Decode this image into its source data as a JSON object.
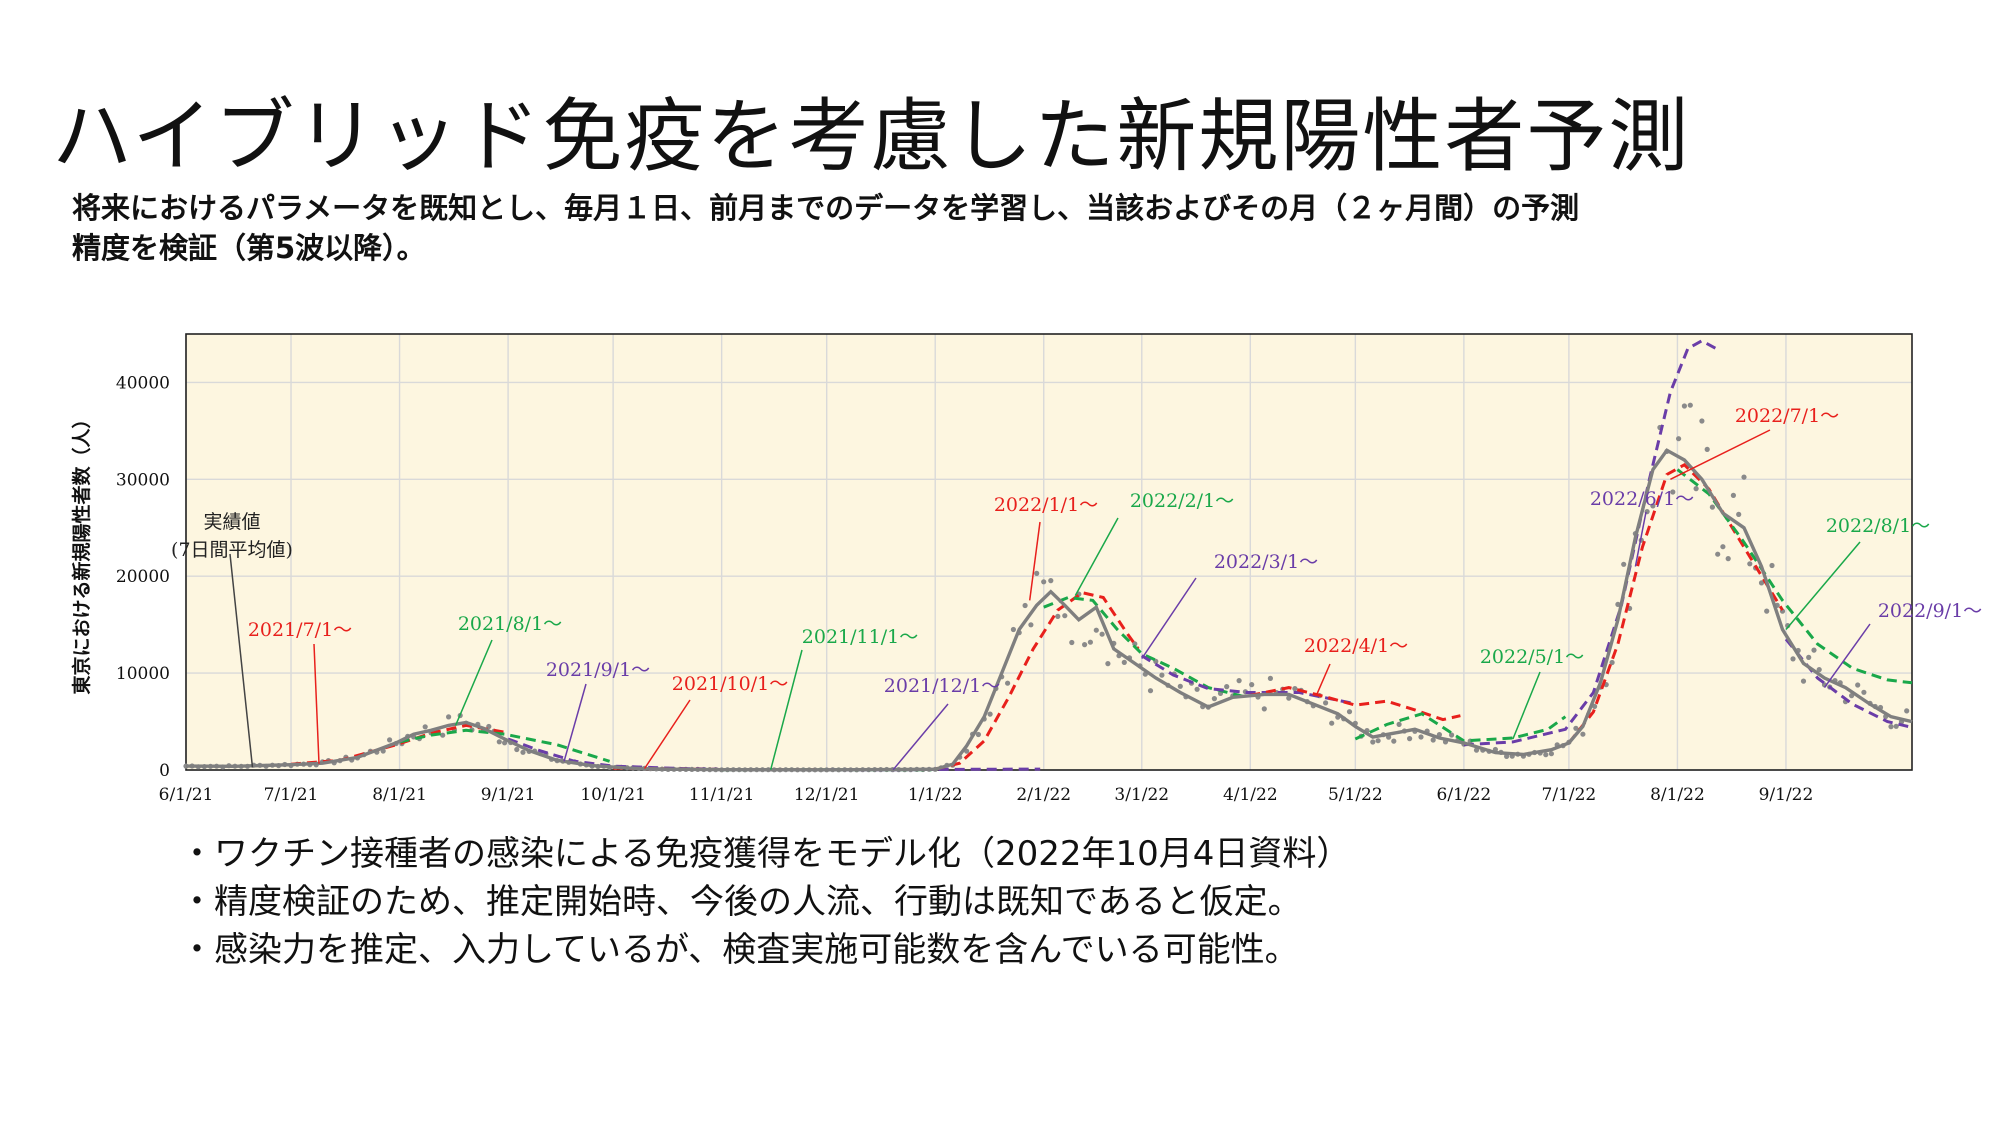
{
  "title": "ハイブリッド免疫を考慮した新規陽性者予測",
  "subtitle": {
    "line1": "将来におけるパラメータを既知とし、毎月１日、前月までのデータを学習し、当該およびその月（２ヶ月間）の予測",
    "line2": "精度を検証（第5波以降）。"
  },
  "notes": [
    "・ワクチン接種者の感染による免疫獲得をモデル化（2022年10月4日資料）",
    "・精度検証のため、推定開始時、今後の人流、行動は既知であると仮定。",
    "・感染力を推定、入力しているが、検査実施可能数を含んでいる可能性。"
  ],
  "colors": {
    "background": "#fdf6e0",
    "grid": "#d9d9d9",
    "actual": "#7f7f7f",
    "red": "#e8201c",
    "green": "#1aa84a",
    "purple": "#6a3da8"
  },
  "chart_data": {
    "type": "line",
    "ylabel": "東京における新規陽性者数（人）",
    "ylim": [
      0,
      45000
    ],
    "yticks": [
      0,
      10000,
      20000,
      30000,
      40000
    ],
    "ytick_labels": [
      "0",
      "10000",
      "20000",
      "30000",
      "40000"
    ],
    "xlim": [
      "2021-06-01",
      "2022-10-07"
    ],
    "xticks": [
      "2021-06-01",
      "2021-07-01",
      "2021-08-01",
      "2021-09-01",
      "2021-10-01",
      "2021-11-01",
      "2021-12-01",
      "2022-01-01",
      "2022-02-01",
      "2022-03-01",
      "2022-04-01",
      "2022-05-01",
      "2022-06-01",
      "2022-07-01",
      "2022-08-01",
      "2022-09-01"
    ],
    "xtick_labels": [
      "6/1/21",
      "7/1/21",
      "8/1/21",
      "9/1/21",
      "10/1/21",
      "11/1/21",
      "12/1/21",
      "1/1/22",
      "2/1/22",
      "3/1/22",
      "4/1/22",
      "5/1/22",
      "6/1/22",
      "7/1/22",
      "8/1/22",
      "9/1/22"
    ],
    "grid": true,
    "actual_line": {
      "label": "実績値",
      "label2": "(7日間平均値)",
      "color": "#7f7f7f",
      "points": [
        [
          "2021-06-01",
          400
        ],
        [
          "2021-06-15",
          380
        ],
        [
          "2021-07-01",
          550
        ],
        [
          "2021-07-10",
          700
        ],
        [
          "2021-07-20",
          1300
        ],
        [
          "2021-07-31",
          2800
        ],
        [
          "2021-08-05",
          3700
        ],
        [
          "2021-08-10",
          4100
        ],
        [
          "2021-08-15",
          4600
        ],
        [
          "2021-08-20",
          4900
        ],
        [
          "2021-08-25",
          4300
        ],
        [
          "2021-08-31",
          3200
        ],
        [
          "2021-09-07",
          2000
        ],
        [
          "2021-09-15",
          1000
        ],
        [
          "2021-09-25",
          450
        ],
        [
          "2021-10-05",
          200
        ],
        [
          "2021-10-15",
          90
        ],
        [
          "2021-11-01",
          30
        ],
        [
          "2021-12-01",
          20
        ],
        [
          "2021-12-25",
          50
        ],
        [
          "2022-01-01",
          80
        ],
        [
          "2022-01-06",
          600
        ],
        [
          "2022-01-10",
          2500
        ],
        [
          "2022-01-15",
          5500
        ],
        [
          "2022-01-20",
          10000
        ],
        [
          "2022-01-25",
          14500
        ],
        [
          "2022-01-30",
          17000
        ],
        [
          "2022-02-03",
          18400
        ],
        [
          "2022-02-07",
          17000
        ],
        [
          "2022-02-11",
          15500
        ],
        [
          "2022-02-16",
          16800
        ],
        [
          "2022-02-21",
          12500
        ],
        [
          "2022-02-27",
          11000
        ],
        [
          "2022-03-05",
          9500
        ],
        [
          "2022-03-12",
          8000
        ],
        [
          "2022-03-20",
          6500
        ],
        [
          "2022-03-27",
          7500
        ],
        [
          "2022-04-05",
          7800
        ],
        [
          "2022-04-12",
          7800
        ],
        [
          "2022-04-19",
          6800
        ],
        [
          "2022-04-26",
          5800
        ],
        [
          "2022-05-01",
          4500
        ],
        [
          "2022-05-06",
          3400
        ],
        [
          "2022-05-12",
          3800
        ],
        [
          "2022-05-18",
          4200
        ],
        [
          "2022-05-25",
          3300
        ],
        [
          "2022-06-01",
          2800
        ],
        [
          "2022-06-10",
          1800
        ],
        [
          "2022-06-18",
          1600
        ],
        [
          "2022-06-26",
          2100
        ],
        [
          "2022-07-01",
          2800
        ],
        [
          "2022-07-05",
          4500
        ],
        [
          "2022-07-10",
          9000
        ],
        [
          "2022-07-15",
          15500
        ],
        [
          "2022-07-20",
          24000
        ],
        [
          "2022-07-25",
          31000
        ],
        [
          "2022-07-29",
          33000
        ],
        [
          "2022-08-03",
          32000
        ],
        [
          "2022-08-08",
          30000
        ],
        [
          "2022-08-14",
          26500
        ],
        [
          "2022-08-20",
          25000
        ],
        [
          "2022-08-25",
          21000
        ],
        [
          "2022-08-31",
          14500
        ],
        [
          "2022-09-06",
          11000
        ],
        [
          "2022-09-12",
          9500
        ],
        [
          "2022-09-18",
          8500
        ],
        [
          "2022-09-25",
          6800
        ],
        [
          "2022-10-01",
          5500
        ],
        [
          "2022-10-07",
          5000
        ]
      ]
    },
    "series": [
      {
        "name": "2021/7/1～",
        "color": "#e8201c",
        "points": [
          [
            "2021-07-01",
            600
          ],
          [
            "2021-07-15",
            1000
          ],
          [
            "2021-07-31",
            2600
          ],
          [
            "2021-08-10",
            3800
          ],
          [
            "2021-08-20",
            4600
          ],
          [
            "2021-08-31",
            3900
          ]
        ]
      },
      {
        "name": "2021/8/1～",
        "color": "#1aa84a",
        "points": [
          [
            "2021-08-01",
            2900
          ],
          [
            "2021-08-10",
            3600
          ],
          [
            "2021-08-20",
            4100
          ],
          [
            "2021-08-31",
            3700
          ],
          [
            "2021-09-15",
            2600
          ],
          [
            "2021-09-30",
            900
          ]
        ]
      },
      {
        "name": "2021/9/1～",
        "color": "#6a3da8",
        "points": [
          [
            "2021-09-01",
            3200
          ],
          [
            "2021-09-10",
            2000
          ],
          [
            "2021-09-20",
            900
          ],
          [
            "2021-10-01",
            400
          ],
          [
            "2021-10-20",
            150
          ],
          [
            "2021-10-31",
            80
          ]
        ]
      },
      {
        "name": "2021/10/1～",
        "color": "#e8201c",
        "points": [
          [
            "2021-10-01",
            200
          ],
          [
            "2021-10-15",
            110
          ],
          [
            "2021-11-01",
            50
          ],
          [
            "2021-11-30",
            20
          ]
        ]
      },
      {
        "name": "2021/11/1～",
        "color": "#1aa84a",
        "points": [
          [
            "2021-11-01",
            30
          ],
          [
            "2021-11-20",
            25
          ],
          [
            "2021-12-01",
            20
          ],
          [
            "2021-12-31",
            20
          ]
        ]
      },
      {
        "name": "2021/12/1～",
        "color": "#6a3da8",
        "points": [
          [
            "2021-12-01",
            20
          ],
          [
            "2021-12-20",
            25
          ],
          [
            "2022-01-01",
            60
          ],
          [
            "2022-01-31",
            90
          ]
        ]
      },
      {
        "name": "2022/1/1～",
        "color": "#e8201c",
        "points": [
          [
            "2022-01-01",
            90
          ],
          [
            "2022-01-08",
            700
          ],
          [
            "2022-01-15",
            3000
          ],
          [
            "2022-01-22",
            7500
          ],
          [
            "2022-01-29",
            12500
          ],
          [
            "2022-02-05",
            16500
          ],
          [
            "2022-02-12",
            18300
          ],
          [
            "2022-02-18",
            17800
          ],
          [
            "2022-02-25",
            14000
          ],
          [
            "2022-02-28",
            12500
          ]
        ]
      },
      {
        "name": "2022/2/1～",
        "color": "#1aa84a",
        "points": [
          [
            "2022-02-01",
            16800
          ],
          [
            "2022-02-08",
            17800
          ],
          [
            "2022-02-15",
            17500
          ],
          [
            "2022-02-22",
            14500
          ],
          [
            "2022-03-01",
            12000
          ],
          [
            "2022-03-10",
            10500
          ],
          [
            "2022-03-20",
            8500
          ],
          [
            "2022-03-31",
            7500
          ]
        ]
      },
      {
        "name": "2022/3/1～",
        "color": "#6a3da8",
        "points": [
          [
            "2022-03-01",
            11800
          ],
          [
            "2022-03-10",
            9800
          ],
          [
            "2022-03-20",
            8400
          ],
          [
            "2022-03-31",
            8000
          ],
          [
            "2022-04-15",
            8000
          ],
          [
            "2022-04-30",
            6900
          ]
        ]
      },
      {
        "name": "2022/4/1～",
        "color": "#e8201c",
        "points": [
          [
            "2022-04-01",
            7700
          ],
          [
            "2022-04-12",
            8500
          ],
          [
            "2022-04-22",
            7600
          ],
          [
            "2022-05-01",
            6700
          ],
          [
            "2022-05-10",
            7100
          ],
          [
            "2022-05-18",
            6200
          ],
          [
            "2022-05-26",
            5200
          ],
          [
            "2022-05-31",
            5600
          ]
        ]
      },
      {
        "name": "2022/5/1～",
        "color": "#1aa84a",
        "points": [
          [
            "2022-05-01",
            3200
          ],
          [
            "2022-05-10",
            4700
          ],
          [
            "2022-05-20",
            5800
          ],
          [
            "2022-06-01",
            3000
          ],
          [
            "2022-06-15",
            3300
          ],
          [
            "2022-06-25",
            4200
          ],
          [
            "2022-06-30",
            5500
          ]
        ]
      },
      {
        "name": "2022/6/1～",
        "color": "#6a3da8",
        "points": [
          [
            "2022-06-01",
            2600
          ],
          [
            "2022-06-15",
            2900
          ],
          [
            "2022-06-30",
            4200
          ],
          [
            "2022-07-08",
            8000
          ],
          [
            "2022-07-16",
            17000
          ],
          [
            "2022-07-24",
            30000
          ],
          [
            "2022-07-30",
            39000
          ],
          [
            "2022-08-04",
            43500
          ],
          [
            "2022-08-08",
            44300
          ],
          [
            "2022-08-12",
            43500
          ]
        ]
      },
      {
        "name": "2022/7/1～",
        "color": "#e8201c",
        "points": [
          [
            "2022-07-01",
            2800
          ],
          [
            "2022-07-08",
            6000
          ],
          [
            "2022-07-15",
            13000
          ],
          [
            "2022-07-22",
            23000
          ],
          [
            "2022-07-29",
            30500
          ],
          [
            "2022-08-03",
            31500
          ],
          [
            "2022-08-10",
            29000
          ],
          [
            "2022-08-20",
            23000
          ],
          [
            "2022-08-31",
            16500
          ]
        ]
      },
      {
        "name": "2022/8/1～",
        "color": "#1aa84a",
        "points": [
          [
            "2022-08-01",
            31000
          ],
          [
            "2022-08-10",
            28500
          ],
          [
            "2022-08-20",
            23500
          ],
          [
            "2022-08-31",
            17500
          ],
          [
            "2022-09-10",
            13000
          ],
          [
            "2022-09-20",
            10500
          ],
          [
            "2022-09-30",
            9300
          ],
          [
            "2022-10-07",
            9000
          ]
        ]
      },
      {
        "name": "2022/9/1～",
        "color": "#6a3da8",
        "points": [
          [
            "2022-09-01",
            13500
          ],
          [
            "2022-09-10",
            9500
          ],
          [
            "2022-09-20",
            6800
          ],
          [
            "2022-09-30",
            5000
          ],
          [
            "2022-10-07",
            4400
          ]
        ]
      }
    ],
    "annotations": [
      {
        "text": "実績値",
        "color": "#222222"
      },
      {
        "text": "2021/7/1～",
        "color": "#e8201c"
      },
      {
        "text": "2021/8/1～",
        "color": "#1aa84a"
      },
      {
        "text": "2021/9/1～",
        "color": "#6a3da8"
      },
      {
        "text": "2021/10/1～",
        "color": "#e8201c"
      },
      {
        "text": "2021/11/1～",
        "color": "#1aa84a"
      },
      {
        "text": "2021/12/1～",
        "color": "#6a3da8"
      },
      {
        "text": "2022/1/1～",
        "color": "#e8201c"
      },
      {
        "text": "2022/2/1～",
        "color": "#1aa84a"
      },
      {
        "text": "2022/3/1～",
        "color": "#6a3da8"
      },
      {
        "text": "2022/4/1～",
        "color": "#e8201c"
      },
      {
        "text": "2022/5/1～",
        "color": "#1aa84a"
      },
      {
        "text": "2022/6/1～",
        "color": "#6a3da8"
      },
      {
        "text": "2022/7/1～",
        "color": "#e8201c"
      },
      {
        "text": "2022/8/1～",
        "color": "#1aa84a"
      },
      {
        "text": "2022/9/1～",
        "color": "#6a3da8"
      }
    ]
  }
}
